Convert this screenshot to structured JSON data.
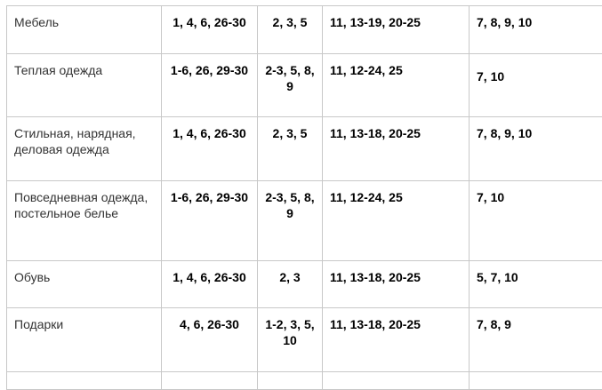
{
  "table": {
    "rows": [
      {
        "category": "Мебель",
        "c1": "1, 4, 6, 26-30",
        "c2": "2, 3, 5",
        "c3": "11, 13-19, 20-25",
        "c4": "7, 8, 9, 10"
      },
      {
        "category": "Теплая одежда",
        "c1": "1-6, 26, 29-30",
        "c2": "2-3, 5, 8, 9",
        "c3": "11, 12-24, 25",
        "c4": "7, 10"
      },
      {
        "category": "Стильная, нарядная, деловая одежда",
        "c1": "1, 4, 6, 26-30",
        "c2": "2, 3, 5",
        "c3": "11, 13-18, 20-25",
        "c4": "7, 8, 9, 10"
      },
      {
        "category": "Повседневная одежда, постельное белье",
        "c1": "1-6, 26, 29-30",
        "c2": "2-3, 5, 8, 9",
        "c3": "11, 12-24, 25",
        "c4": "7, 10"
      },
      {
        "category": "Обувь",
        "c1": "1, 4, 6, 26-30",
        "c2": "2, 3",
        "c3": "11, 13-18, 20-25",
        "c4": "5, 7, 10"
      },
      {
        "category": "Подарки",
        "c1": "4, 6, 26-30",
        "c2": "1-2, 3, 5, 10",
        "c3": "11, 13-18, 20-25",
        "c4": "7, 8, 9"
      }
    ]
  }
}
